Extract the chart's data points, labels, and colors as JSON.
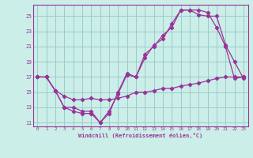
{
  "xlabel": "Windchill (Refroidissement éolien,°C)",
  "xlim": [
    -0.5,
    23.5
  ],
  "ylim": [
    10.5,
    26.5
  ],
  "xticks": [
    0,
    1,
    2,
    3,
    4,
    5,
    6,
    7,
    8,
    9,
    10,
    11,
    12,
    13,
    14,
    15,
    16,
    17,
    18,
    19,
    20,
    21,
    22,
    23
  ],
  "yticks": [
    11,
    13,
    15,
    17,
    19,
    21,
    23,
    25
  ],
  "bg_color": "#cceee8",
  "line_color": "#993399",
  "grid_color": "#99cccc",
  "line1_x": [
    0,
    1,
    2,
    3,
    4,
    5,
    6,
    7,
    8,
    9,
    10,
    11,
    12,
    13,
    14,
    15,
    16,
    17,
    18,
    19,
    20,
    21,
    22,
    23
  ],
  "line1_y": [
    17,
    17,
    15.2,
    13,
    13,
    12.5,
    12.5,
    11,
    12.5,
    14.8,
    17.3,
    17,
    19.5,
    21.2,
    22,
    24,
    25.8,
    25.8,
    25.2,
    25,
    25,
    21.2,
    19,
    16.8
  ],
  "line2_x": [
    0,
    1,
    2,
    3,
    4,
    5,
    6,
    7,
    8,
    9,
    10,
    11,
    12,
    13,
    14,
    15,
    16,
    17,
    18,
    19,
    20,
    21,
    22,
    23
  ],
  "line2_y": [
    17,
    17,
    15.2,
    13,
    12.5,
    12.2,
    12.2,
    11,
    12.2,
    15,
    17.5,
    17,
    20,
    21,
    22.5,
    23.5,
    25.8,
    25.8,
    25.8,
    25.5,
    23.5,
    21,
    16.8,
    17
  ],
  "line3_x": [
    0,
    1,
    2,
    3,
    4,
    5,
    6,
    7,
    8,
    9,
    10,
    11,
    12,
    13,
    14,
    15,
    16,
    17,
    18,
    19,
    20,
    21,
    22,
    23
  ],
  "line3_y": [
    17,
    17,
    15.2,
    14.5,
    14,
    14,
    14.2,
    14,
    14,
    14.2,
    14.5,
    15,
    15,
    15.2,
    15.5,
    15.5,
    15.8,
    16,
    16.2,
    16.5,
    16.8,
    17,
    17,
    17
  ]
}
